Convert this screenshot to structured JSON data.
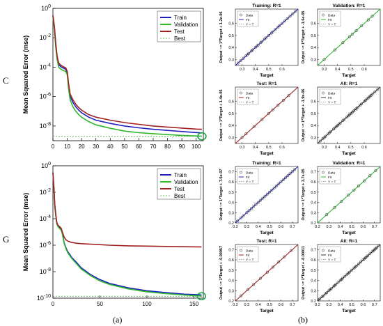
{
  "labels": {
    "row_c": "C",
    "row_g": "G",
    "caption_a": "(a)",
    "caption_b": "(b)"
  },
  "colors": {
    "train": "#1f1fbf",
    "validation": "#2db82d",
    "test": "#a02020",
    "best": "#2db82d",
    "highlight_circle": "#15a040"
  },
  "chart_data": [
    {
      "id": "perf-c",
      "type": "line",
      "ylabel": "Mean Squared Error  (mse)",
      "ylog": true,
      "ylim": [
        1e-09,
        1
      ],
      "xlim": [
        0,
        105
      ],
      "xticks": [
        0,
        10,
        20,
        30,
        40,
        50,
        60,
        70,
        80,
        90,
        100
      ],
      "yticks": [
        {
          "v": 1,
          "t": "10^0"
        },
        {
          "v": 0.01,
          "t": "10^-2"
        },
        {
          "v": 0.0001,
          "t": "10^-4"
        },
        {
          "v": 1e-06,
          "t": "10^-6"
        },
        {
          "v": 1e-08,
          "t": "10^-8"
        }
      ],
      "legend": [
        "Train",
        "Validation",
        "Test",
        "Best"
      ],
      "series": [
        {
          "name": "Train",
          "x": [
            0,
            1,
            2,
            3,
            4,
            5,
            6,
            7,
            8,
            9,
            10,
            11,
            12,
            14,
            16,
            18,
            20,
            25,
            30,
            40,
            50,
            60,
            70,
            80,
            90,
            100,
            104
          ],
          "y": [
            0.3,
            0.05,
            0.003,
            0.0004,
            0.00015,
            0.00012,
            0.0001,
            9e-05,
            8e-05,
            7e-05,
            4e-05,
            5e-06,
            1e-06,
            4e-07,
            2e-07,
            1.2e-07,
            8e-08,
            4e-08,
            2.5e-08,
            1.5e-08,
            1e-08,
            7.5e-09,
            6e-09,
            5e-09,
            4.2e-09,
            3.6e-09,
            3.4e-09
          ]
        },
        {
          "name": "Validation",
          "x": [
            0,
            1,
            2,
            3,
            4,
            5,
            6,
            7,
            8,
            9,
            10,
            11,
            12,
            14,
            16,
            18,
            20,
            25,
            30,
            40,
            50,
            60,
            70,
            80,
            90,
            100,
            104
          ],
          "y": [
            0.25,
            0.04,
            0.002,
            0.0003,
            0.0001,
            8e-05,
            7e-05,
            6e-05,
            5.5e-05,
            5e-05,
            3e-05,
            3e-06,
            6e-07,
            2e-07,
            1e-07,
            6e-08,
            4e-08,
            2e-08,
            1.2e-08,
            7e-09,
            4.5e-09,
            3.5e-09,
            3e-09,
            2.6e-09,
            2.3e-09,
            2.1e-09,
            2e-09
          ]
        },
        {
          "name": "Test",
          "x": [
            0,
            1,
            2,
            3,
            4,
            5,
            6,
            7,
            8,
            9,
            10,
            11,
            12,
            14,
            16,
            18,
            20,
            25,
            30,
            40,
            50,
            60,
            70,
            80,
            90,
            100,
            104
          ],
          "y": [
            0.35,
            0.06,
            0.004,
            0.0005,
            0.0002,
            0.00015,
            0.00013,
            0.00011,
            0.0001,
            9e-05,
            5e-05,
            7e-06,
            1.5e-06,
            6e-07,
            3e-07,
            1.8e-07,
            1.2e-07,
            6e-08,
            4e-08,
            2.5e-08,
            1.7e-08,
            1.3e-08,
            1e-08,
            8.5e-09,
            7.2e-09,
            6.2e-09,
            6e-09
          ]
        }
      ],
      "best": {
        "x": 104,
        "y": 2e-09
      }
    },
    {
      "id": "perf-g",
      "type": "line",
      "ylabel": "Mean Squared Error  (mse)",
      "ylog": true,
      "ylim": [
        1e-10,
        1
      ],
      "xlim": [
        0,
        160
      ],
      "xticks": [
        0,
        50,
        100,
        150
      ],
      "yticks": [
        {
          "v": 1,
          "t": "10^0"
        },
        {
          "v": 0.01,
          "t": "10^-2"
        },
        {
          "v": 0.0001,
          "t": "10^-4"
        },
        {
          "v": 1e-06,
          "t": "10^-6"
        },
        {
          "v": 1e-08,
          "t": "10^-8"
        },
        {
          "v": 1e-10,
          "t": "10^-10"
        }
      ],
      "legend": [
        "Train",
        "Validation",
        "Test",
        "Best"
      ],
      "series": [
        {
          "name": "Train",
          "x": [
            0,
            1,
            2,
            3,
            4,
            5,
            6,
            7,
            8,
            9,
            10,
            12,
            14,
            16,
            18,
            20,
            25,
            30,
            40,
            50,
            60,
            80,
            100,
            120,
            140,
            155,
            158
          ],
          "y": [
            0.3,
            0.02,
            0.001,
            0.0002,
            5e-05,
            3e-05,
            2.5e-05,
            2e-05,
            1.8e-05,
            1.5e-05,
            8e-06,
            1.5e-06,
            6e-07,
            3e-07,
            2e-07,
            1.2e-07,
            5e-08,
            2e-08,
            6e-09,
            2.5e-09,
            1.3e-09,
            6e-10,
            3.6e-10,
            2.6e-10,
            2e-10,
            1.8e-10,
            1.7e-10
          ]
        },
        {
          "name": "Validation",
          "x": [
            0,
            1,
            2,
            3,
            4,
            5,
            6,
            7,
            8,
            9,
            10,
            12,
            14,
            16,
            18,
            20,
            25,
            30,
            40,
            50,
            60,
            80,
            100,
            120,
            140,
            155,
            158
          ],
          "y": [
            0.28,
            0.018,
            0.0009,
            0.00018,
            4.5e-05,
            2.8e-05,
            2.2e-05,
            1.8e-05,
            1.6e-05,
            1.3e-05,
            7e-06,
            1.3e-06,
            5e-07,
            2.5e-07,
            1.6e-07,
            1e-07,
            4e-08,
            1.6e-08,
            5e-09,
            2e-09,
            1.1e-09,
            5e-10,
            3e-10,
            2.2e-10,
            1.7e-10,
            1.5e-10,
            1.4e-10
          ]
        },
        {
          "name": "Test",
          "x": [
            0,
            1,
            2,
            3,
            4,
            5,
            6,
            7,
            8,
            9,
            10,
            12,
            14,
            16,
            18,
            20,
            25,
            30,
            40,
            50,
            60,
            80,
            100,
            120,
            140,
            155,
            158
          ],
          "y": [
            0.32,
            0.025,
            0.0012,
            0.00025,
            6e-05,
            3.5e-05,
            3e-05,
            2.5e-05,
            2.2e-05,
            1.8e-05,
            1e-05,
            4e-06,
            2.5e-06,
            2e-06,
            1.8e-06,
            1.6e-06,
            1.4e-06,
            1.3e-06,
            1.2e-06,
            1.1e-06,
            1e-06,
            9e-07,
            8.5e-07,
            8e-07,
            7.7e-07,
            7.5e-07,
            7.5e-07
          ]
        }
      ],
      "best": {
        "x": 158,
        "y": 1.4e-10
      }
    },
    {
      "id": "reg-c-train",
      "type": "scatter",
      "title": "Training: R=1",
      "ylabel": "Output ~= 1*Target + 1.2e-06",
      "xlabel": "Target",
      "fit_color": "#1f1fbf",
      "legend": [
        "Data",
        "Fit",
        "Y = T"
      ],
      "lim": [
        0.25,
        0.72
      ],
      "ticks": [
        0.3,
        0.4,
        0.5,
        0.6
      ],
      "points": [
        0.27,
        0.29,
        0.31,
        0.33,
        0.34,
        0.35,
        0.37,
        0.38,
        0.4,
        0.41,
        0.42,
        0.44,
        0.45,
        0.47,
        0.48,
        0.5,
        0.52,
        0.53,
        0.55,
        0.57,
        0.58,
        0.6,
        0.62,
        0.64,
        0.66,
        0.68,
        0.7
      ]
    },
    {
      "id": "reg-c-val",
      "type": "scatter",
      "title": "Validation: R=1",
      "ylabel": "Output ~= 1*Target + -1.6e-05",
      "xlabel": "Target",
      "fit_color": "#2db82d",
      "legend": [
        "Data",
        "Fit",
        "Y = T"
      ],
      "lim": [
        0.25,
        0.72
      ],
      "ticks": [
        0.3,
        0.4,
        0.5,
        0.6
      ],
      "points": [
        0.3,
        0.38,
        0.44,
        0.49,
        0.51,
        0.54,
        0.58,
        0.63,
        0.66
      ]
    },
    {
      "id": "reg-c-test",
      "type": "scatter",
      "title": "Test: R=1",
      "ylabel": "Output ~= 1*Target + 1.4e-05",
      "xlabel": "Target",
      "fit_color": "#a02020",
      "legend": [
        "Data",
        "Fit",
        "Y = T"
      ],
      "lim": [
        0.25,
        0.72
      ],
      "ticks": [
        0.3,
        0.4,
        0.5,
        0.6
      ],
      "points": [
        0.3,
        0.33,
        0.39,
        0.45,
        0.5,
        0.53,
        0.57,
        0.61,
        0.65
      ]
    },
    {
      "id": "reg-c-all",
      "type": "scatter",
      "title": "All: R=1",
      "ylabel": "Output ~= 1*Target + -1.9e-06",
      "xlabel": "Target",
      "fit_color": "#333333",
      "legend": [
        "Data",
        "Fit",
        "Y = T"
      ],
      "lim": [
        0.25,
        0.72
      ],
      "ticks": [
        0.3,
        0.4,
        0.5,
        0.6
      ],
      "points": [
        0.27,
        0.29,
        0.3,
        0.31,
        0.33,
        0.34,
        0.35,
        0.37,
        0.38,
        0.39,
        0.4,
        0.41,
        0.42,
        0.44,
        0.45,
        0.47,
        0.48,
        0.49,
        0.5,
        0.51,
        0.52,
        0.53,
        0.54,
        0.55,
        0.57,
        0.58,
        0.6,
        0.61,
        0.62,
        0.63,
        0.64,
        0.65,
        0.66,
        0.68,
        0.7
      ]
    },
    {
      "id": "reg-g-train",
      "type": "scatter",
      "title": "Training: R=1",
      "ylabel": "Output ~= 1*Target + 7.6e-07",
      "xlabel": "Target",
      "fit_color": "#1f1fbf",
      "legend": [
        "Data",
        "Fit",
        "Y = T"
      ],
      "lim": [
        0.2,
        0.75
      ],
      "ticks": [
        0.2,
        0.3,
        0.4,
        0.5,
        0.6,
        0.7
      ],
      "points": [
        0.22,
        0.25,
        0.27,
        0.3,
        0.32,
        0.34,
        0.36,
        0.38,
        0.4,
        0.42,
        0.44,
        0.46,
        0.48,
        0.5,
        0.52,
        0.54,
        0.56,
        0.58,
        0.6,
        0.62,
        0.64,
        0.66,
        0.68,
        0.7,
        0.72
      ]
    },
    {
      "id": "reg-g-val",
      "type": "scatter",
      "title": "Validation: R=1",
      "ylabel": "Output ~= 1*Target + 3.7e-05",
      "xlabel": "Target",
      "fit_color": "#2db82d",
      "legend": [
        "Data",
        "Fit",
        "Y = T"
      ],
      "lim": [
        0.2,
        0.75
      ],
      "ticks": [
        0.2,
        0.3,
        0.4,
        0.5,
        0.6,
        0.7
      ],
      "points": [
        0.28,
        0.35,
        0.41,
        0.47,
        0.52,
        0.56,
        0.61,
        0.66,
        0.71
      ]
    },
    {
      "id": "reg-g-test",
      "type": "scatter",
      "title": "Test: R=1",
      "ylabel": "Output ~= 1*Target + -0.00057",
      "xlabel": "Target",
      "fit_color": "#a02020",
      "legend": [
        "Data",
        "Fit",
        "Y = T"
      ],
      "lim": [
        0.2,
        0.75
      ],
      "ticks": [
        0.2,
        0.3,
        0.4,
        0.5,
        0.6,
        0.7
      ],
      "points": [
        0.25,
        0.31,
        0.36,
        0.42,
        0.48,
        0.53,
        0.58,
        0.63,
        0.69
      ]
    },
    {
      "id": "reg-g-all",
      "type": "scatter",
      "title": "All: R=1",
      "ylabel": "Output ~= 1*Target + -0.00011",
      "xlabel": "Target",
      "fit_color": "#333333",
      "legend": [
        "Data",
        "Fit",
        "Y = T"
      ],
      "lim": [
        0.2,
        0.75
      ],
      "ticks": [
        0.2,
        0.3,
        0.4,
        0.5,
        0.6,
        0.7
      ],
      "points": [
        0.21,
        0.22,
        0.24,
        0.25,
        0.27,
        0.28,
        0.3,
        0.31,
        0.32,
        0.34,
        0.35,
        0.36,
        0.38,
        0.4,
        0.41,
        0.42,
        0.44,
        0.46,
        0.47,
        0.48,
        0.5,
        0.52,
        0.53,
        0.54,
        0.56,
        0.58,
        0.6,
        0.61,
        0.62,
        0.63,
        0.64,
        0.66,
        0.68,
        0.69,
        0.7,
        0.71,
        0.72,
        0.74
      ]
    }
  ]
}
